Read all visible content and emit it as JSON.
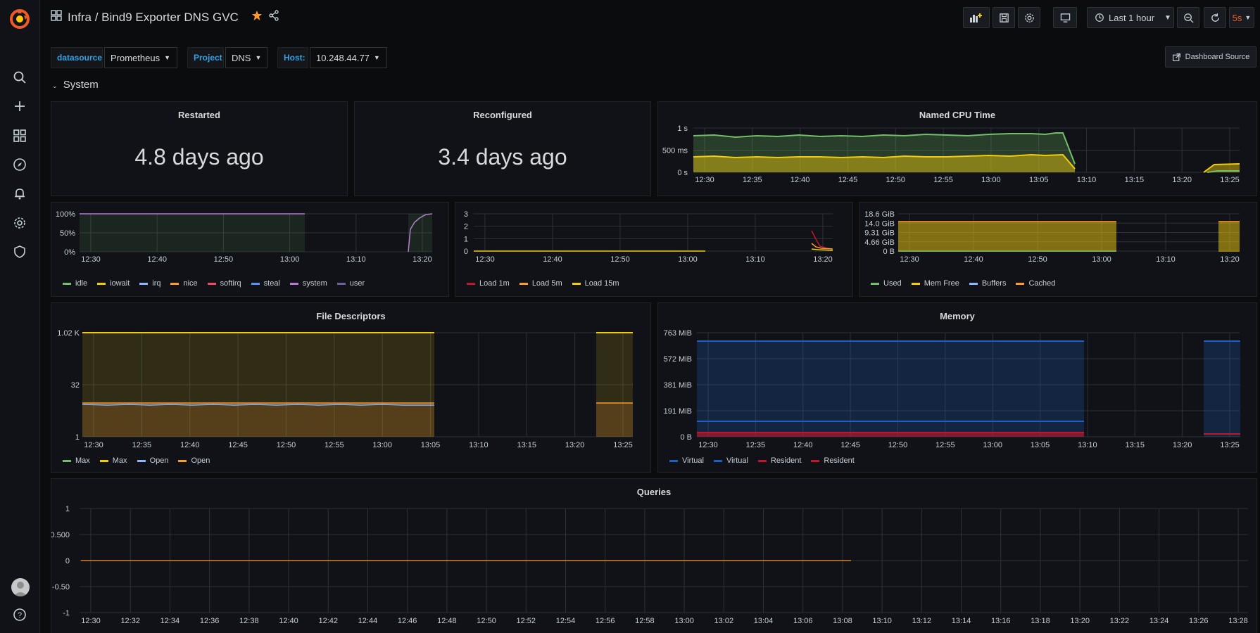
{
  "header": {
    "title": "Infra / Bind9 Exporter DNS GVC",
    "time_range": "Last 1 hour",
    "refresh": "5s"
  },
  "variables": [
    {
      "label": "datasource",
      "value": "Prometheus"
    },
    {
      "label": "Project",
      "value": "DNS"
    },
    {
      "label": "Host:",
      "value": "10.248.44.77"
    }
  ],
  "dashboard_source": "Dashboard Source",
  "row": {
    "title": "System"
  },
  "panels": {
    "restarted": {
      "title": "Restarted",
      "value": "4.8 days ago"
    },
    "reconfigured": {
      "title": "Reconfigured",
      "value": "3.4 days ago"
    },
    "named_cpu": {
      "title": "Named CPU Time"
    },
    "cpu": {
      "title": ""
    },
    "load": {
      "title": ""
    },
    "mem_sys": {
      "title": ""
    },
    "fd": {
      "title": "File Descriptors"
    },
    "memory": {
      "title": "Memory"
    },
    "queries": {
      "title": "Queries"
    }
  },
  "colors": {
    "green": "#73bf69",
    "yellow": "#f2cc0c",
    "orange": "#ff9830",
    "red": "#c4162a",
    "blue": "#1f60c4",
    "cyan": "#8ab8ff",
    "purple": "#b877d9",
    "accent": "#33a2e5"
  },
  "chart_data": [
    {
      "id": "named_cpu",
      "type": "area",
      "title": "Named CPU Time",
      "x_ticks": [
        "12:30",
        "12:35",
        "12:40",
        "12:45",
        "12:50",
        "12:55",
        "13:00",
        "13:05",
        "13:10",
        "13:15",
        "13:20",
        "13:25"
      ],
      "y_ticks": [
        "1 s",
        "500 ms",
        "0 s"
      ],
      "ylim": [
        0,
        1
      ],
      "series": [
        {
          "name": "",
          "color": "#73bf69",
          "values": [
            0.86,
            0.85,
            0.84,
            0.86,
            0.85,
            0.84,
            0.86,
            0.85,
            0.86,
            0.87,
            0.88,
            0.9,
            0.92,
            0.0,
            0.0,
            0.0,
            0.0,
            0.0,
            0.0,
            0.0,
            0.12
          ]
        },
        {
          "name": "",
          "color": "#f2cc0c",
          "values": [
            0.42,
            0.4,
            0.41,
            0.4,
            0.41,
            0.42,
            0.4,
            0.41,
            0.42,
            0.43,
            0.44,
            0.46,
            0.48,
            0.0,
            0.0,
            0.0,
            0.0,
            0.0,
            0.0,
            0.0,
            0.28
          ]
        }
      ]
    },
    {
      "id": "cpu",
      "type": "area",
      "x_ticks": [
        "12:30",
        "12:40",
        "12:50",
        "13:00",
        "13:10",
        "13:20"
      ],
      "y_ticks": [
        "100%",
        "50%",
        "0%"
      ],
      "ylim": [
        0,
        100
      ],
      "legend": [
        "idle",
        "iowait",
        "irq",
        "nice",
        "softirq",
        "steal",
        "system",
        "user"
      ],
      "legend_colors": [
        "#73bf69",
        "#f2cc0c",
        "#8ab8ff",
        "#ff9830",
        "#f2495c",
        "#5794f2",
        "#b877d9",
        "#705da0"
      ]
    },
    {
      "id": "load",
      "type": "line",
      "x_ticks": [
        "12:30",
        "12:40",
        "12:50",
        "13:00",
        "13:10",
        "13:20"
      ],
      "y_ticks": [
        "3",
        "2",
        "1",
        "0"
      ],
      "ylim": [
        0,
        3
      ],
      "legend": [
        "Load 1m",
        "Load 5m",
        "Load 15m"
      ],
      "legend_colors": [
        "#c4162a",
        "#ff9830",
        "#f2cc0c"
      ]
    },
    {
      "id": "mem_sys",
      "type": "area",
      "x_ticks": [
        "12:30",
        "12:40",
        "12:50",
        "13:00",
        "13:10",
        "13:20"
      ],
      "y_ticks": [
        "18.6 GiB",
        "14.0 GiB",
        "9.31 GiB",
        "4.66 GiB",
        "0 B"
      ],
      "legend": [
        "Used",
        "Mem Free",
        "Buffers",
        "Cached"
      ],
      "legend_colors": [
        "#73bf69",
        "#f2cc0c",
        "#8ab8ff",
        "#ff9830"
      ]
    },
    {
      "id": "fd",
      "type": "area",
      "title": "File Descriptors",
      "x_ticks": [
        "12:30",
        "12:35",
        "12:40",
        "12:45",
        "12:50",
        "12:55",
        "13:00",
        "13:05",
        "13:10",
        "13:15",
        "13:20",
        "13:25"
      ],
      "y_ticks": [
        "1.02 K",
        "32",
        "1"
      ],
      "legend": [
        "Max",
        "Max",
        "Open",
        "Open"
      ],
      "legend_colors": [
        "#73bf69",
        "#f2cc0c",
        "#8ab8ff",
        "#ff9830"
      ]
    },
    {
      "id": "memory",
      "type": "area",
      "title": "Memory",
      "x_ticks": [
        "12:30",
        "12:35",
        "12:40",
        "12:45",
        "12:50",
        "12:55",
        "13:00",
        "13:05",
        "13:10",
        "13:15",
        "13:20",
        "13:25"
      ],
      "y_ticks": [
        "763 MiB",
        "572 MiB",
        "381 MiB",
        "191 MiB",
        "0 B"
      ],
      "legend": [
        "Virtual",
        "Virtual",
        "Resident",
        "Resident"
      ],
      "legend_colors": [
        "#1f60c4",
        "#1f60c4",
        "#c4162a",
        "#c4162a"
      ]
    },
    {
      "id": "queries",
      "type": "line",
      "title": "Queries",
      "x_ticks": [
        "12:30",
        "12:32",
        "12:34",
        "12:36",
        "12:38",
        "12:40",
        "12:42",
        "12:44",
        "12:46",
        "12:48",
        "12:50",
        "12:52",
        "12:54",
        "12:56",
        "12:58",
        "13:00",
        "13:02",
        "13:04",
        "13:06",
        "13:08",
        "13:10",
        "13:12",
        "13:14",
        "13:16",
        "13:18",
        "13:20",
        "13:22",
        "13:24",
        "13:26",
        "13:28"
      ],
      "y_ticks": [
        "1",
        "0.500",
        "0",
        "-0.50",
        "-1"
      ],
      "ylim": [
        -1,
        1
      ]
    }
  ]
}
